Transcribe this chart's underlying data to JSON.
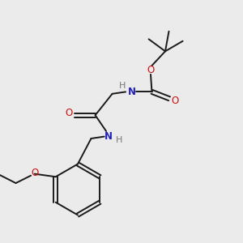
{
  "background_color": "#ebebeb",
  "bond_color": "#1a1a1a",
  "N_color": "#2222bb",
  "O_color": "#cc1111",
  "H_color": "#777777",
  "figsize": [
    3.0,
    3.0
  ],
  "dpi": 100,
  "xlim": [
    0,
    10
  ],
  "ylim": [
    0,
    10
  ],
  "bond_lw": 1.4,
  "font_size": 8.5
}
